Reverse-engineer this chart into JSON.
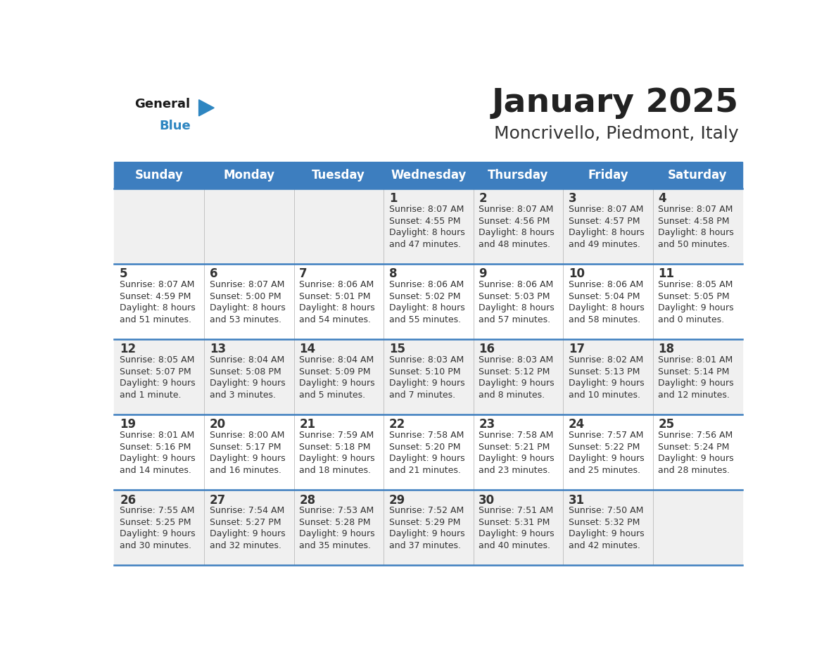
{
  "title": "January 2025",
  "subtitle": "Moncrivello, Piedmont, Italy",
  "days_of_week": [
    "Sunday",
    "Monday",
    "Tuesday",
    "Wednesday",
    "Thursday",
    "Friday",
    "Saturday"
  ],
  "header_bg": "#3d7ebf",
  "header_text": "#ffffff",
  "row_bg_odd": "#f0f0f0",
  "row_bg_even": "#ffffff",
  "cell_text_color": "#333333",
  "day_num_color": "#333333",
  "border_color": "#3d7ebf",
  "calendar_data": [
    [
      null,
      null,
      null,
      {
        "day": 1,
        "sunrise": "8:07 AM",
        "sunset": "4:55 PM",
        "daylight": "8 hours\nand 47 minutes."
      },
      {
        "day": 2,
        "sunrise": "8:07 AM",
        "sunset": "4:56 PM",
        "daylight": "8 hours\nand 48 minutes."
      },
      {
        "day": 3,
        "sunrise": "8:07 AM",
        "sunset": "4:57 PM",
        "daylight": "8 hours\nand 49 minutes."
      },
      {
        "day": 4,
        "sunrise": "8:07 AM",
        "sunset": "4:58 PM",
        "daylight": "8 hours\nand 50 minutes."
      }
    ],
    [
      {
        "day": 5,
        "sunrise": "8:07 AM",
        "sunset": "4:59 PM",
        "daylight": "8 hours\nand 51 minutes."
      },
      {
        "day": 6,
        "sunrise": "8:07 AM",
        "sunset": "5:00 PM",
        "daylight": "8 hours\nand 53 minutes."
      },
      {
        "day": 7,
        "sunrise": "8:06 AM",
        "sunset": "5:01 PM",
        "daylight": "8 hours\nand 54 minutes."
      },
      {
        "day": 8,
        "sunrise": "8:06 AM",
        "sunset": "5:02 PM",
        "daylight": "8 hours\nand 55 minutes."
      },
      {
        "day": 9,
        "sunrise": "8:06 AM",
        "sunset": "5:03 PM",
        "daylight": "8 hours\nand 57 minutes."
      },
      {
        "day": 10,
        "sunrise": "8:06 AM",
        "sunset": "5:04 PM",
        "daylight": "8 hours\nand 58 minutes."
      },
      {
        "day": 11,
        "sunrise": "8:05 AM",
        "sunset": "5:05 PM",
        "daylight": "9 hours\nand 0 minutes."
      }
    ],
    [
      {
        "day": 12,
        "sunrise": "8:05 AM",
        "sunset": "5:07 PM",
        "daylight": "9 hours\nand 1 minute."
      },
      {
        "day": 13,
        "sunrise": "8:04 AM",
        "sunset": "5:08 PM",
        "daylight": "9 hours\nand 3 minutes."
      },
      {
        "day": 14,
        "sunrise": "8:04 AM",
        "sunset": "5:09 PM",
        "daylight": "9 hours\nand 5 minutes."
      },
      {
        "day": 15,
        "sunrise": "8:03 AM",
        "sunset": "5:10 PM",
        "daylight": "9 hours\nand 7 minutes."
      },
      {
        "day": 16,
        "sunrise": "8:03 AM",
        "sunset": "5:12 PM",
        "daylight": "9 hours\nand 8 minutes."
      },
      {
        "day": 17,
        "sunrise": "8:02 AM",
        "sunset": "5:13 PM",
        "daylight": "9 hours\nand 10 minutes."
      },
      {
        "day": 18,
        "sunrise": "8:01 AM",
        "sunset": "5:14 PM",
        "daylight": "9 hours\nand 12 minutes."
      }
    ],
    [
      {
        "day": 19,
        "sunrise": "8:01 AM",
        "sunset": "5:16 PM",
        "daylight": "9 hours\nand 14 minutes."
      },
      {
        "day": 20,
        "sunrise": "8:00 AM",
        "sunset": "5:17 PM",
        "daylight": "9 hours\nand 16 minutes."
      },
      {
        "day": 21,
        "sunrise": "7:59 AM",
        "sunset": "5:18 PM",
        "daylight": "9 hours\nand 18 minutes."
      },
      {
        "day": 22,
        "sunrise": "7:58 AM",
        "sunset": "5:20 PM",
        "daylight": "9 hours\nand 21 minutes."
      },
      {
        "day": 23,
        "sunrise": "7:58 AM",
        "sunset": "5:21 PM",
        "daylight": "9 hours\nand 23 minutes."
      },
      {
        "day": 24,
        "sunrise": "7:57 AM",
        "sunset": "5:22 PM",
        "daylight": "9 hours\nand 25 minutes."
      },
      {
        "day": 25,
        "sunrise": "7:56 AM",
        "sunset": "5:24 PM",
        "daylight": "9 hours\nand 28 minutes."
      }
    ],
    [
      {
        "day": 26,
        "sunrise": "7:55 AM",
        "sunset": "5:25 PM",
        "daylight": "9 hours\nand 30 minutes."
      },
      {
        "day": 27,
        "sunrise": "7:54 AM",
        "sunset": "5:27 PM",
        "daylight": "9 hours\nand 32 minutes."
      },
      {
        "day": 28,
        "sunrise": "7:53 AM",
        "sunset": "5:28 PM",
        "daylight": "9 hours\nand 35 minutes."
      },
      {
        "day": 29,
        "sunrise": "7:52 AM",
        "sunset": "5:29 PM",
        "daylight": "9 hours\nand 37 minutes."
      },
      {
        "day": 30,
        "sunrise": "7:51 AM",
        "sunset": "5:31 PM",
        "daylight": "9 hours\nand 40 minutes."
      },
      {
        "day": 31,
        "sunrise": "7:50 AM",
        "sunset": "5:32 PM",
        "daylight": "9 hours\nand 42 minutes."
      },
      null
    ]
  ],
  "logo_general_color": "#1a1a1a",
  "logo_blue_color": "#2e86c1",
  "title_fontsize": 34,
  "subtitle_fontsize": 18,
  "header_fontsize": 12,
  "day_num_fontsize": 12,
  "cell_text_fontsize": 9.0
}
